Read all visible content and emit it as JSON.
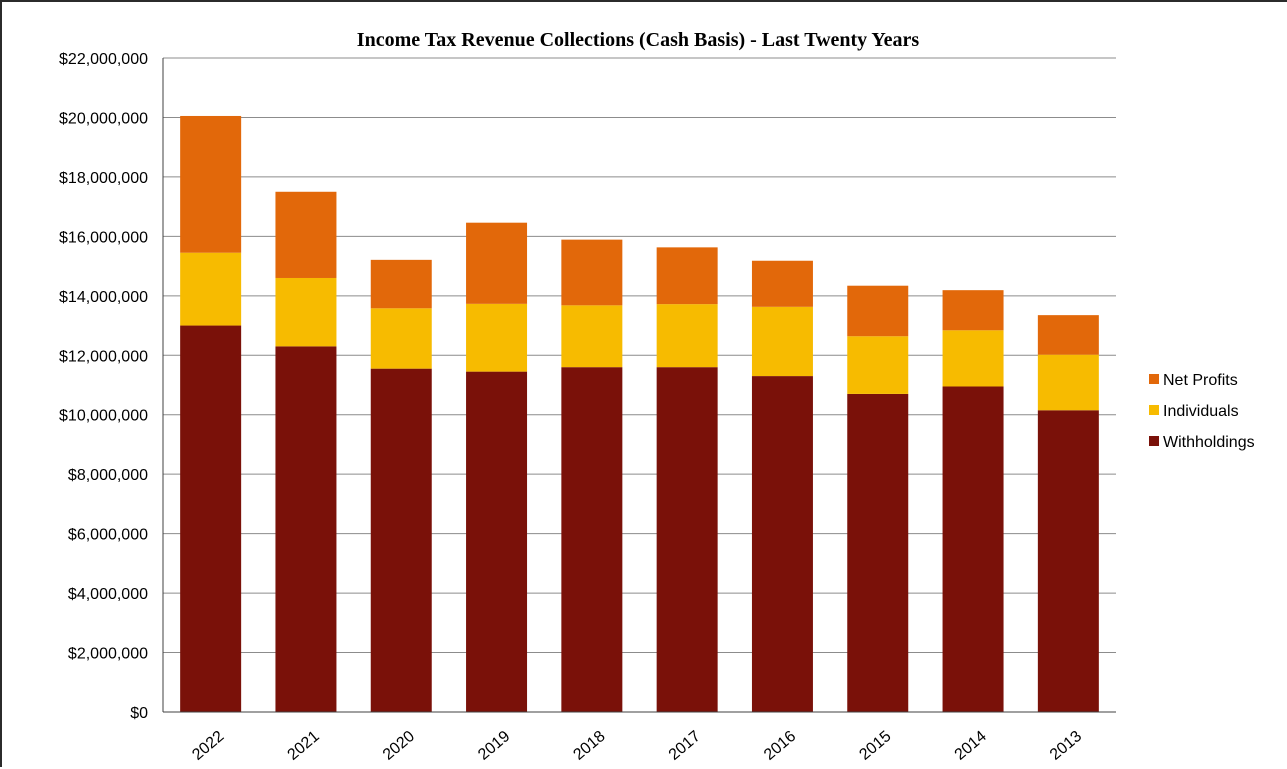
{
  "chart_data": {
    "type": "bar",
    "stacked": true,
    "title": "Income Tax Revenue Collections (Cash Basis) - Last Twenty Years",
    "xlabel": "",
    "ylabel": "",
    "categories": [
      "2022",
      "2021",
      "2020",
      "2019",
      "2018",
      "2017",
      "2016",
      "2015",
      "2014",
      "2013"
    ],
    "ylim": [
      0,
      22000000
    ],
    "yticks": [
      0,
      2000000,
      4000000,
      6000000,
      8000000,
      10000000,
      12000000,
      14000000,
      16000000,
      18000000,
      20000000,
      22000000
    ],
    "ytick_labels": [
      "$0",
      "$2,000,000",
      "$4,000,000",
      "$6,000,000",
      "$8,000,000",
      "$10,000,000",
      "$12,000,000",
      "$14,000,000",
      "$16,000,000",
      "$18,000,000",
      "$20,000,000",
      "$22,000,000"
    ],
    "grid": true,
    "legend_position": "right",
    "series": [
      {
        "name": "Withholdings",
        "color": "#7a1109",
        "values": [
          13000000,
          12300000,
          11550000,
          11450000,
          11600000,
          11600000,
          11300000,
          10700000,
          10950000,
          10150000
        ]
      },
      {
        "name": "Individuals",
        "color": "#f7bb00",
        "values": [
          2450000,
          2300000,
          2030000,
          2280000,
          2080000,
          2120000,
          2330000,
          1940000,
          1890000,
          1870000
        ]
      },
      {
        "name": "Net Profits",
        "color": "#e2680a",
        "values": [
          4600000,
          2900000,
          1630000,
          2730000,
          2210000,
          1910000,
          1550000,
          1700000,
          1350000,
          1330000
        ]
      }
    ],
    "legend_order": [
      "Net Profits",
      "Individuals",
      "Withholdings"
    ]
  }
}
